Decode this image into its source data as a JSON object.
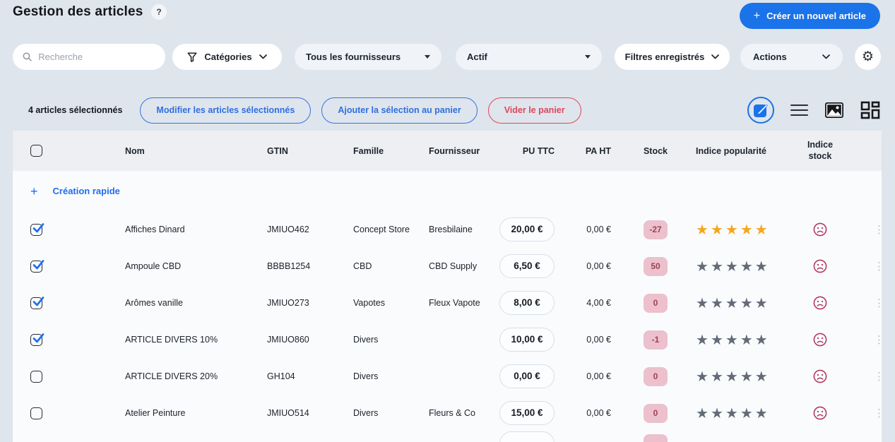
{
  "page": {
    "title": "Gestion des articles",
    "help_badge": "?"
  },
  "header": {
    "create_button_label": "Créer un nouvel article",
    "create_button_plus": "+"
  },
  "filters": {
    "search_placeholder": "Recherche",
    "categories_label": "Catégories",
    "suppliers_value": "Tous les fournisseurs",
    "status_value": "Actif",
    "saved_filters_label": "Filtres enregistrés",
    "actions_label": "Actions"
  },
  "selection_bar": {
    "count_text": "4 articles sélectionnés",
    "edit_selected_label": "Modifier les articles sélectionnés",
    "add_to_cart_label": "Ajouter la sélection au panier",
    "clear_cart_label": "Vider le panier",
    "view_mode_icons": [
      "edit-square-icon",
      "list-view-icon",
      "image-view-icon",
      "dashboard-view-icon"
    ]
  },
  "table": {
    "quick_create_plus": "+",
    "quick_create_label": "Création rapide",
    "columns": [
      "Nom",
      "GTIN",
      "Famille",
      "Fournisseur",
      "PU TTC",
      "PA HT",
      "Stock",
      "Indice popularité",
      "Indice stock"
    ],
    "rows": [
      {
        "checked": true,
        "name": "Affiches Dinard",
        "gtin": "JMIUO462",
        "famille": "Concept Store",
        "fournisseur": "Bresbilaine",
        "pu_ttc": "20,00 €",
        "pa_ht": "0,00 €",
        "stock": "-27",
        "popularity_stars": 5,
        "stock_indicator": "sad-face"
      },
      {
        "checked": true,
        "name": "Ampoule CBD",
        "gtin": "BBBB1254",
        "famille": "CBD",
        "fournisseur": "CBD Supply",
        "pu_ttc": "6,50 €",
        "pa_ht": "0,00 €",
        "stock": "50",
        "popularity_stars": 0,
        "stock_indicator": "sad-face"
      },
      {
        "checked": true,
        "name": "Arômes vanille",
        "gtin": "JMIUO273",
        "famille": "Vapotes",
        "fournisseur": "Fleux Vapote",
        "pu_ttc": "8,00 €",
        "pa_ht": "4,00 €",
        "stock": "0",
        "popularity_stars": 0,
        "stock_indicator": "sad-face"
      },
      {
        "checked": true,
        "name": "ARTICLE DIVERS 10%",
        "gtin": "JMIUO860",
        "famille": "Divers",
        "fournisseur": "",
        "pu_ttc": "10,00 €",
        "pa_ht": "0,00 €",
        "stock": "-1",
        "popularity_stars": 0,
        "stock_indicator": "sad-face"
      },
      {
        "checked": false,
        "name": "ARTICLE DIVERS 20%",
        "gtin": "GH104",
        "famille": "Divers",
        "fournisseur": "",
        "pu_ttc": "0,00 €",
        "pa_ht": "0,00 €",
        "stock": "0",
        "popularity_stars": 0,
        "stock_indicator": "sad-face"
      },
      {
        "checked": false,
        "name": "Atelier Peinture",
        "gtin": "JMIUO514",
        "famille": "Divers",
        "fournisseur": "Fleurs & Co",
        "pu_ttc": "15,00 €",
        "pa_ht": "0,00 €",
        "stock": "0",
        "popularity_stars": 0,
        "stock_indicator": "sad-face"
      }
    ]
  },
  "colors": {
    "accent_blue": "#1a73e8",
    "link_blue": "#1f6ef0",
    "danger_red": "#e0455e",
    "star_active": "#f6a61d",
    "star_inactive": "#636b78",
    "stock_badge_bg": "#ecc0cd",
    "stock_badge_text": "#9d4258",
    "page_background": "#dfe5ec"
  }
}
